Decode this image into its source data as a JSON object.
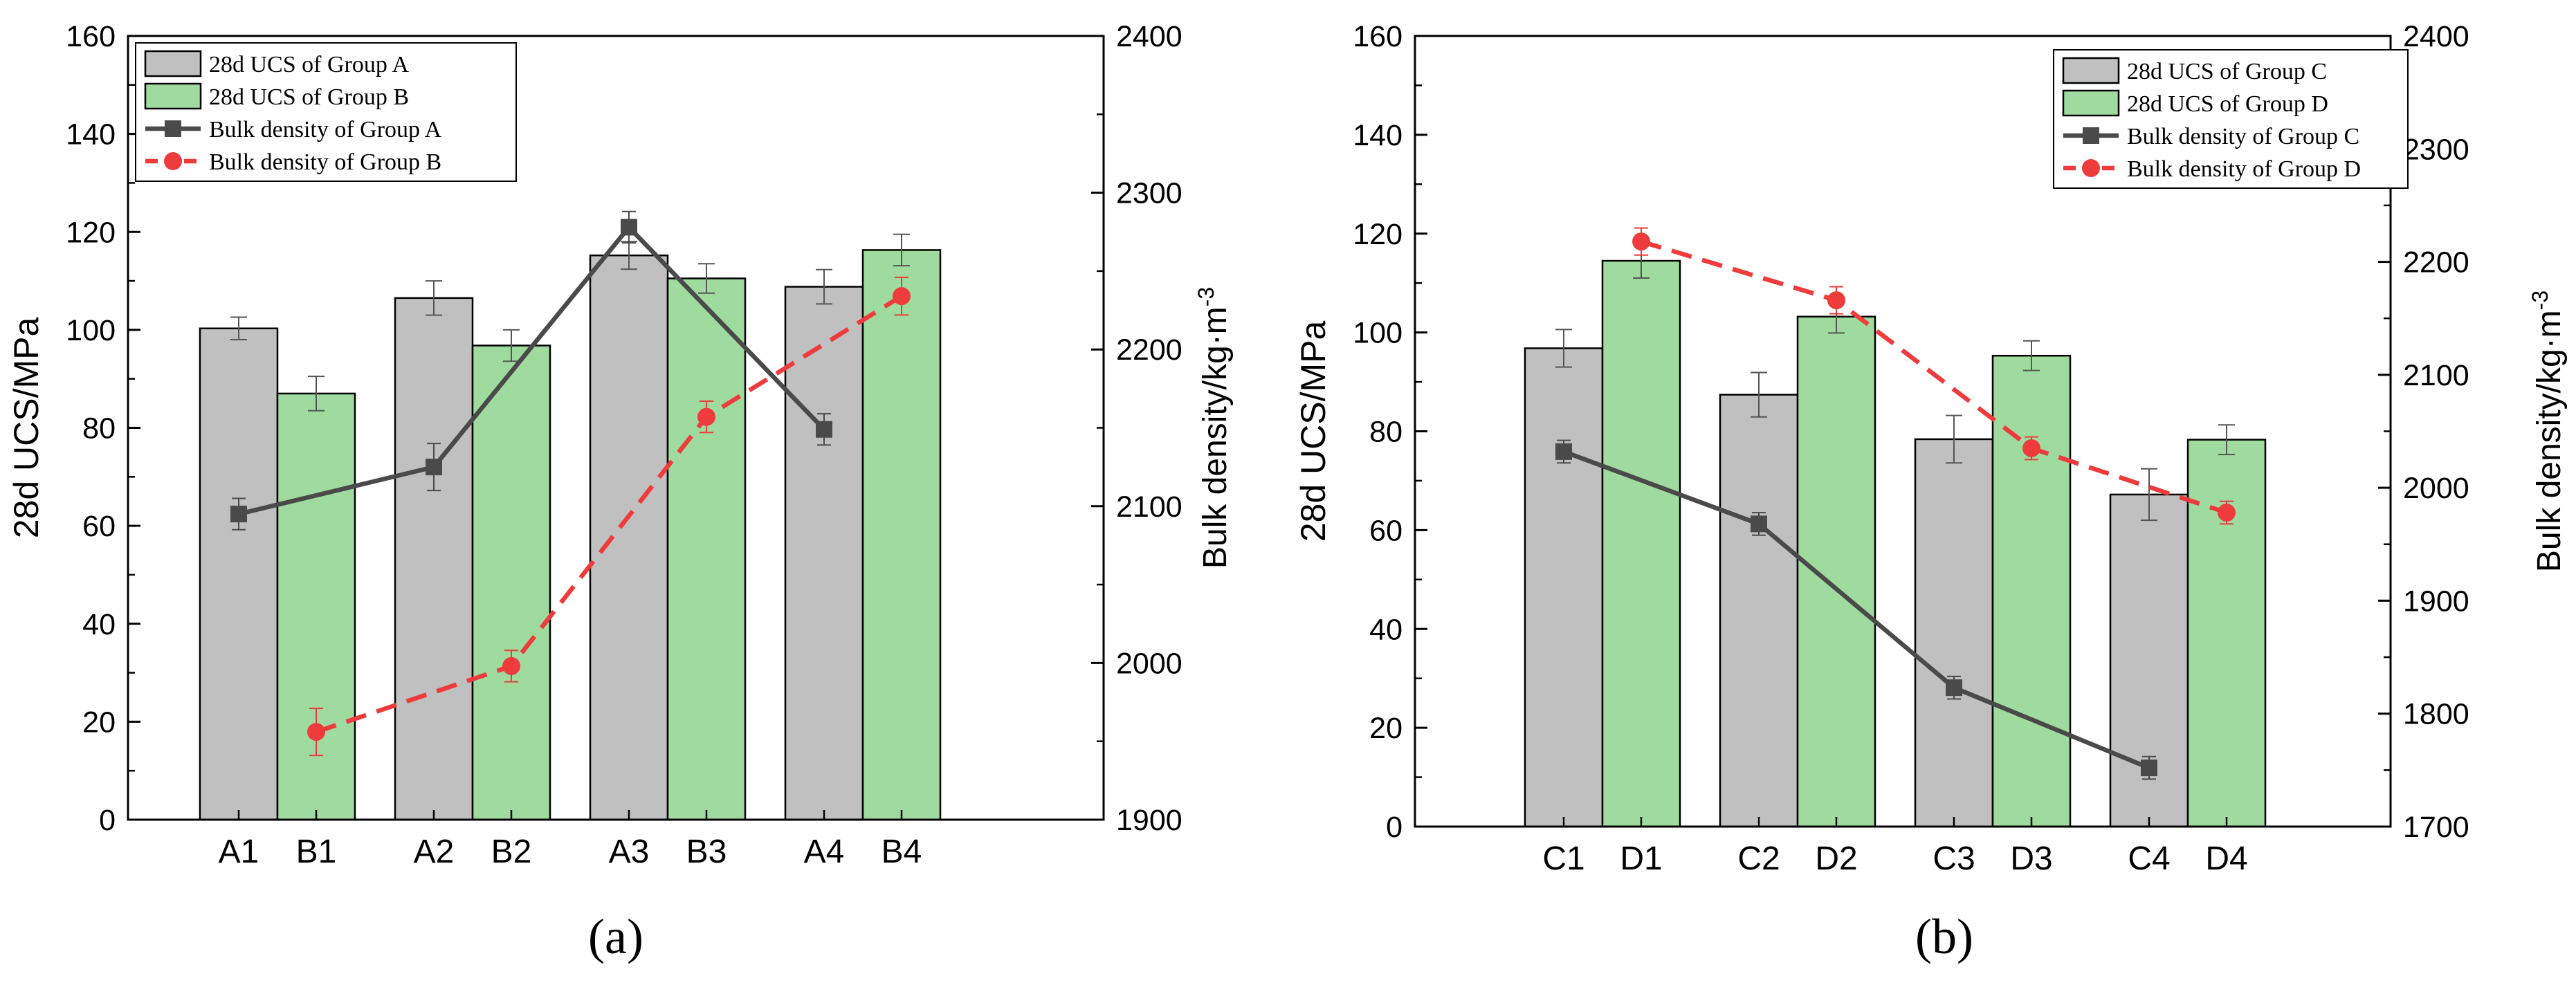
{
  "chart_data": [
    {
      "type": "bar+line",
      "panel_label": "(a)",
      "categories": [
        "A1",
        "B1",
        "A2",
        "B2",
        "A3",
        "B3",
        "A4",
        "B4"
      ],
      "ylabel_left": "28d UCS/MPa",
      "ylabel_right": "Bulk density/kg·m",
      "ylabel_right_sup": "-3",
      "ylim_left": [
        0,
        160
      ],
      "ylim_right": [
        1900,
        2400
      ],
      "yticks_left": [
        0,
        20,
        40,
        60,
        80,
        100,
        120,
        140,
        160
      ],
      "yticks_right": [
        1900,
        2000,
        2100,
        2200,
        2300,
        2400
      ],
      "legend_position": "top-left",
      "bars": [
        {
          "name": "28d UCS of Group A",
          "color": "#c0c0c0",
          "categories": [
            "A1",
            "A2",
            "A3",
            "A4"
          ],
          "values": [
            100.3,
            106.5,
            115.2,
            108.8
          ],
          "errors": [
            2.3,
            3.5,
            2.8,
            3.5
          ]
        },
        {
          "name": "28d UCS of Group B",
          "color": "#9fdb9f",
          "categories": [
            "B1",
            "B2",
            "B3",
            "B4"
          ],
          "values": [
            87.0,
            96.8,
            110.5,
            116.3
          ],
          "errors": [
            3.5,
            3.2,
            3.0,
            3.2
          ]
        }
      ],
      "lines": [
        {
          "name": "Bulk density of Group A",
          "color": "#4a4a4a",
          "dash": "solid",
          "marker": "square",
          "categories": [
            "A1",
            "A2",
            "A3",
            "A4"
          ],
          "values": [
            2095,
            2125,
            2278,
            2149
          ],
          "errors": [
            10,
            15,
            10,
            10
          ]
        },
        {
          "name": "Bulk density of Group B",
          "color": "#ee3b3b",
          "dash": "dashed",
          "marker": "circle",
          "categories": [
            "B1",
            "B2",
            "B3",
            "B4"
          ],
          "values": [
            1956,
            1998,
            2157,
            2234
          ],
          "errors": [
            15,
            10,
            10,
            12
          ]
        }
      ]
    },
    {
      "type": "bar+line",
      "panel_label": "(b)",
      "categories": [
        "C1",
        "D1",
        "C2",
        "D2",
        "C3",
        "D3",
        "C4",
        "D4"
      ],
      "ylabel_left": "28d UCS/MPa",
      "ylabel_right": "Bulk density/kg·m",
      "ylabel_right_sup": "-3",
      "ylim_left": [
        0,
        160
      ],
      "ylim_right": [
        1700,
        2400
      ],
      "yticks_left": [
        0,
        20,
        40,
        60,
        80,
        100,
        120,
        140,
        160
      ],
      "yticks_right": [
        1700,
        1800,
        1900,
        2000,
        2100,
        2200,
        2300,
        2400
      ],
      "legend_position": "top-right",
      "bars": [
        {
          "name": "28d UCS of Group C",
          "color": "#c0c0c0",
          "categories": [
            "C1",
            "C2",
            "C3",
            "C4"
          ],
          "values": [
            96.8,
            87.4,
            78.4,
            67.2
          ],
          "errors": [
            3.8,
            4.5,
            4.8,
            5.2
          ]
        },
        {
          "name": "28d UCS of Group D",
          "color": "#9fdb9f",
          "categories": [
            "D1",
            "D2",
            "D3",
            "D4"
          ],
          "values": [
            114.5,
            103.2,
            95.3,
            78.3
          ],
          "errors": [
            3.5,
            3.3,
            3.0,
            3.0
          ]
        }
      ],
      "lines": [
        {
          "name": "Bulk density of Group C",
          "color": "#4a4a4a",
          "dash": "solid",
          "marker": "square",
          "categories": [
            "C1",
            "C2",
            "C3",
            "C4"
          ],
          "values": [
            2032,
            1968,
            1823,
            1752
          ],
          "errors": [
            10,
            10,
            10,
            10
          ]
        },
        {
          "name": "Bulk density of Group D",
          "color": "#ee3b3b",
          "dash": "dashed",
          "marker": "circle",
          "categories": [
            "D1",
            "D2",
            "D3",
            "D4"
          ],
          "values": [
            2218,
            2166,
            2035,
            1978
          ],
          "errors": [
            12,
            12,
            10,
            10
          ]
        }
      ]
    }
  ]
}
